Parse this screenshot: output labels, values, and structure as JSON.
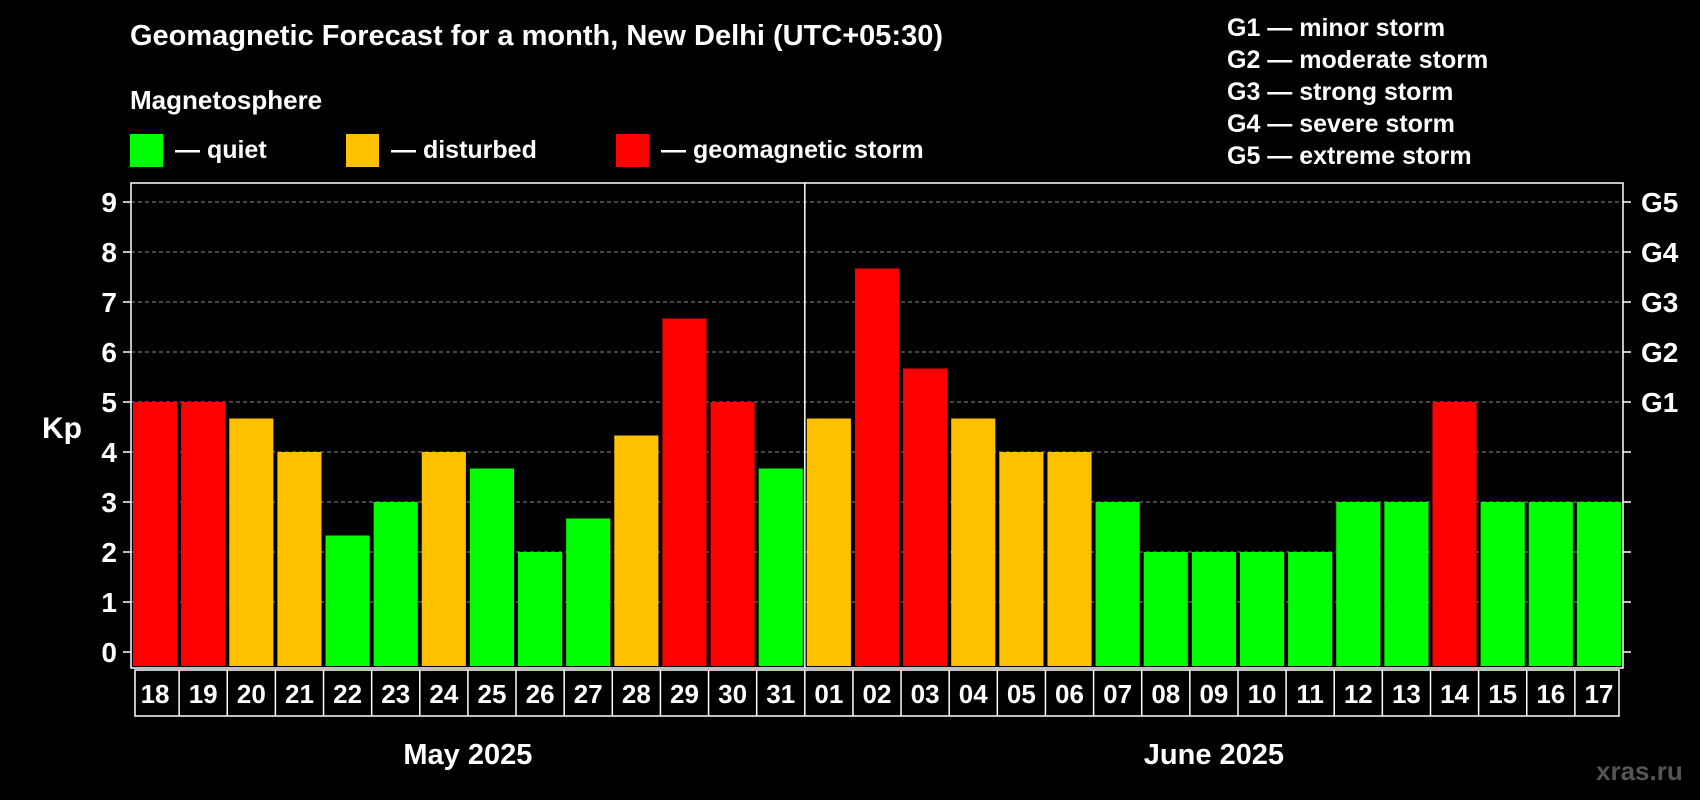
{
  "title": "Geomagnetic Forecast for a month, New Delhi (UTC+05:30)",
  "legend": {
    "heading": "Magnetosphere",
    "items": [
      {
        "label": "— quiet",
        "color": "#00ff00"
      },
      {
        "label": "— disturbed",
        "color": "#ffc000"
      },
      {
        "label": "— geomagnetic storm",
        "color": "#ff0000"
      }
    ]
  },
  "storm_scale": [
    "G1 — minor storm",
    "G2 — moderate storm",
    "G3 — strong storm",
    "G4 — severe storm",
    "G5 — extreme storm"
  ],
  "watermark": "xras.ru",
  "chart_data": {
    "type": "bar",
    "ylabel": "Kp",
    "ylim": [
      0,
      9
    ],
    "yticks": [
      0,
      1,
      2,
      3,
      4,
      5,
      6,
      7,
      8,
      9
    ],
    "right_ticks": [
      {
        "value": 5,
        "label": "G1"
      },
      {
        "value": 6,
        "label": "G2"
      },
      {
        "value": 7,
        "label": "G3"
      },
      {
        "value": 8,
        "label": "G4"
      },
      {
        "value": 9,
        "label": "G5"
      }
    ],
    "grid": true,
    "categories": [
      "18",
      "19",
      "20",
      "21",
      "22",
      "23",
      "24",
      "25",
      "26",
      "27",
      "28",
      "29",
      "30",
      "31",
      "01",
      "02",
      "03",
      "04",
      "05",
      "06",
      "07",
      "08",
      "09",
      "10",
      "11",
      "12",
      "13",
      "14",
      "15",
      "16",
      "17"
    ],
    "values": [
      5,
      5,
      4.67,
      4,
      2.33,
      3,
      4,
      3.67,
      2,
      2.67,
      4.33,
      6.67,
      5,
      3.67,
      4.67,
      7.67,
      5.67,
      4.67,
      4,
      4,
      3,
      2,
      2,
      2,
      2,
      3,
      3,
      5,
      3,
      3,
      3
    ],
    "levels": [
      "storm",
      "storm",
      "disturbed",
      "disturbed",
      "quiet",
      "quiet",
      "disturbed",
      "quiet",
      "quiet",
      "quiet",
      "disturbed",
      "storm",
      "storm",
      "quiet",
      "disturbed",
      "storm",
      "storm",
      "disturbed",
      "disturbed",
      "disturbed",
      "quiet",
      "quiet",
      "quiet",
      "quiet",
      "quiet",
      "quiet",
      "quiet",
      "storm",
      "quiet",
      "quiet",
      "quiet"
    ],
    "level_colors": {
      "quiet": "#00ff00",
      "disturbed": "#ffc000",
      "storm": "#ff0000"
    },
    "months": [
      {
        "label": "May 2025",
        "count": 14
      },
      {
        "label": "June 2025",
        "count": 17
      }
    ]
  }
}
